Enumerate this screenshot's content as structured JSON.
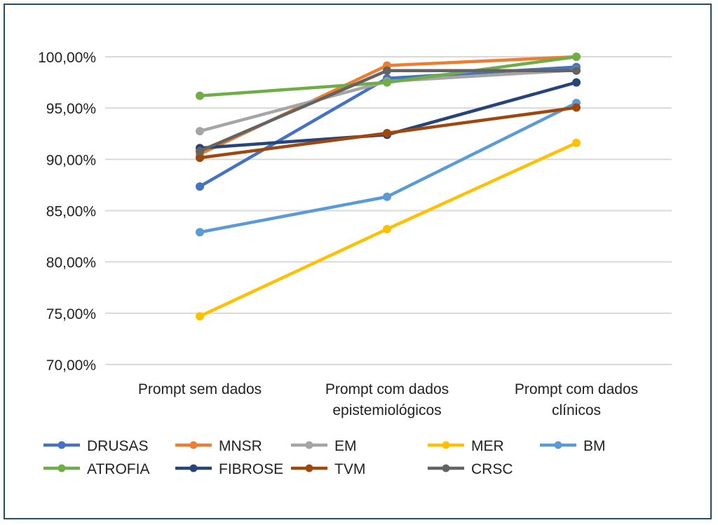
{
  "chart_data": {
    "type": "line",
    "title": "",
    "xlabel": "",
    "ylabel": "",
    "ylim": [
      70,
      100
    ],
    "yticks": [
      "70,00%",
      "75,00%",
      "80,00%",
      "85,00%",
      "90,00%",
      "95,00%",
      "100,00%"
    ],
    "ytick_values": [
      70,
      75,
      80,
      85,
      90,
      95,
      100
    ],
    "grid": true,
    "legend_position": "bottom",
    "categories": [
      [
        "Prompt sem dados"
      ],
      [
        "Prompt com dados",
        "epistemiológicos"
      ],
      [
        "Prompt com dados",
        "clínicos"
      ]
    ],
    "series": [
      {
        "name": "DRUSAS",
        "color": "#4472c4",
        "values": [
          87.35,
          97.9,
          99.0
        ]
      },
      {
        "name": "MNSR",
        "color": "#ed7d31",
        "values": [
          90.5,
          99.15,
          100.0
        ]
      },
      {
        "name": "EM",
        "color": "#a5a5a5",
        "values": [
          92.75,
          97.6,
          98.7
        ]
      },
      {
        "name": "MER",
        "color": "#ffc000",
        "values": [
          74.7,
          83.2,
          91.6
        ]
      },
      {
        "name": "BM",
        "color": "#5b9bd5",
        "values": [
          82.9,
          86.35,
          95.5
        ]
      },
      {
        "name": "ATROFIA",
        "color": "#70ad47",
        "values": [
          96.2,
          97.5,
          100.0
        ]
      },
      {
        "name": "FIBROSE",
        "color": "#264478",
        "values": [
          91.1,
          92.4,
          97.5
        ]
      },
      {
        "name": "TVM",
        "color": "#9e480e",
        "values": [
          90.15,
          92.55,
          95.05
        ]
      },
      {
        "name": "CRSC",
        "color": "#636363",
        "values": [
          90.8,
          98.65,
          98.65
        ]
      }
    ]
  }
}
